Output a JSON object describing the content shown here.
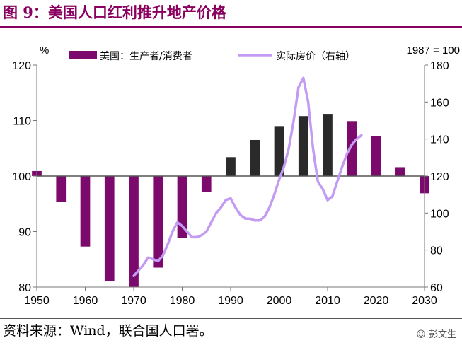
{
  "header": {
    "title": "图 9：美国人口红利推升地产价格"
  },
  "footer": {
    "source": "资料来源：Wind，联合国人口署。",
    "watermark": "彭文生"
  },
  "chart_data": {
    "type": "bar",
    "left_unit": "%",
    "right_unit": "1987 = 100",
    "ylim": [
      80,
      120
    ],
    "yticks": [
      80,
      90,
      100,
      110,
      120
    ],
    "y2lim": [
      60,
      180
    ],
    "y2ticks": [
      60,
      80,
      100,
      120,
      140,
      160,
      180
    ],
    "xlim": [
      1950,
      2030
    ],
    "xticks": [
      1950,
      1960,
      1970,
      1980,
      1990,
      2000,
      2010,
      2020,
      2030
    ],
    "baseline": 100,
    "series": [
      {
        "name": "美国：生产者/消费者",
        "axis": "left",
        "color": "#7b0a6c",
        "highlight_color": "#2a2a2a",
        "x": [
          1950,
          1955,
          1960,
          1965,
          1970,
          1975,
          1980,
          1985,
          1990,
          1995,
          2000,
          2005,
          2010,
          2015,
          2020,
          2025,
          2030
        ],
        "values": [
          100.9,
          95.3,
          87.3,
          81.1,
          80.0,
          83.5,
          88.8,
          97.2,
          103.4,
          106.5,
          109.0,
          110.8,
          111.2,
          109.9,
          107.2,
          101.6,
          96.9
        ],
        "highlight_x": [
          1990,
          1995,
          2000,
          2005,
          2010
        ]
      },
      {
        "name": "实际房价（右轴）",
        "axis": "right",
        "color": "#c49bf2",
        "x": [
          1970,
          1971,
          1972,
          1973,
          1974,
          1975,
          1976,
          1977,
          1978,
          1979,
          1980,
          1981,
          1982,
          1983,
          1984,
          1985,
          1986,
          1987,
          1988,
          1989,
          1990,
          1991,
          1992,
          1993,
          1994,
          1995,
          1996,
          1997,
          1998,
          1999,
          2000,
          2001,
          2002,
          2003,
          2004,
          2005,
          2006,
          2007,
          2008,
          2009,
          2010,
          2011,
          2012,
          2013,
          2014,
          2015,
          2016,
          2017
        ],
        "values": [
          66,
          69,
          72,
          76,
          75,
          74,
          77,
          83,
          90,
          95,
          93,
          90,
          87,
          87,
          88,
          90,
          95,
          100,
          103,
          107,
          108,
          103,
          99,
          97,
          97,
          96,
          96,
          98,
          103,
          110,
          118,
          125,
          135,
          150,
          168,
          173,
          160,
          135,
          117,
          113,
          107,
          109,
          117,
          125,
          132,
          137,
          140,
          142
        ]
      }
    ]
  }
}
